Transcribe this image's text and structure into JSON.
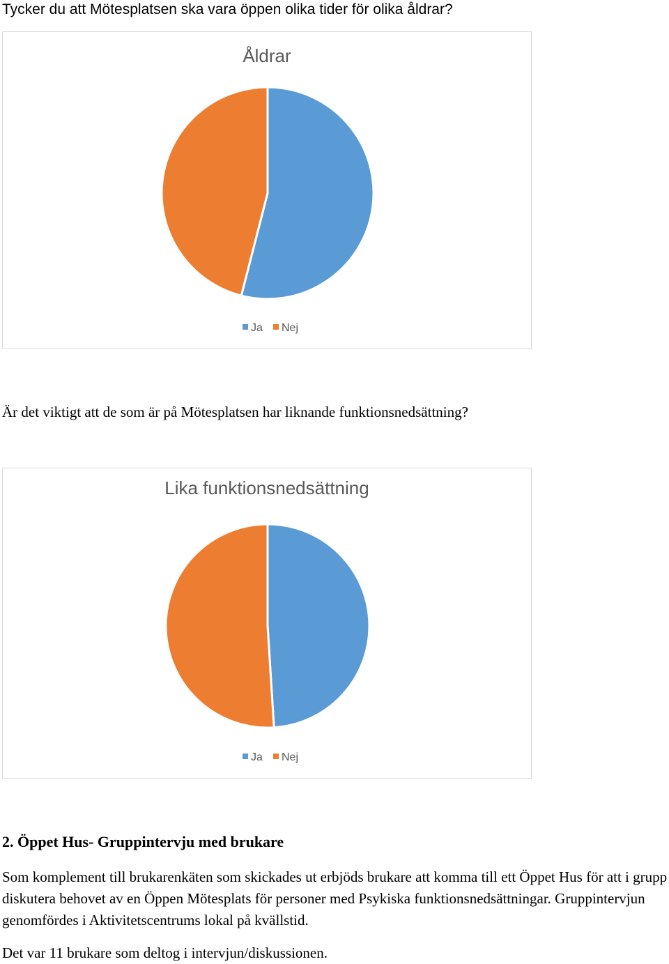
{
  "question1": "Tycker du att Mötesplatsen ska vara öppen olika tider för olika åldrar?",
  "question2": "Är det viktigt att de som är på Mötesplatsen har liknande funktionsnedsättning?",
  "section": {
    "heading": "2. Öppet Hus- Gruppintervju med brukare",
    "paragraph1": "Som komplement till brukarenkäten som skickades ut erbjöds brukare att komma till ett Öppet Hus för att i grupp diskutera behovet av en Öppen Mötesplats för personer med Psykiska funktionsnedsättningar. Gruppintervjun genomfördes i Aktivitetscentrums lokal på kvällstid.",
    "paragraph2": "Det var 11 brukare som deltog i intervjun/diskussionen."
  },
  "colors": {
    "ja": "#5B9BD5",
    "nej": "#ED7D31"
  },
  "chart_data": [
    {
      "type": "pie",
      "title": "Åldrar",
      "categories": [
        "Ja",
        "Nej"
      ],
      "values": [
        54,
        46
      ],
      "legend": "bottom"
    },
    {
      "type": "pie",
      "title": "Lika funktionsnedsättning",
      "categories": [
        "Ja",
        "Nej"
      ],
      "values": [
        49,
        51
      ],
      "legend": "bottom"
    }
  ]
}
